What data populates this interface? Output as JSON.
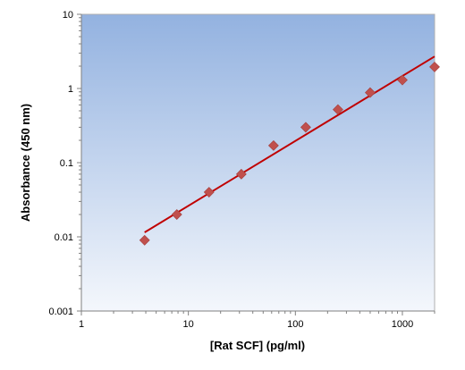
{
  "chart_data": {
    "type": "scatter",
    "title": "",
    "xlabel": "[Rat SCF] (pg/ml)",
    "ylabel": "Absorbance (450 nm)",
    "x_scale": "log",
    "y_scale": "log",
    "xlim": [
      1,
      2000
    ],
    "ylim": [
      0.001,
      10
    ],
    "x_ticks": [
      1,
      10,
      100,
      1000
    ],
    "x_tick_labels": [
      "1",
      "10",
      "100",
      "1000"
    ],
    "y_ticks": [
      0.001,
      0.01,
      0.1,
      1,
      10
    ],
    "y_tick_labels": [
      "0.001",
      "0.01",
      "0.1",
      "1",
      "10"
    ],
    "grid": false,
    "legend": "none",
    "series": [
      {
        "kind": "points",
        "marker": "diamond",
        "color": "#c0504d",
        "x": [
          3.9,
          7.8,
          15.6,
          31.25,
          62.5,
          125,
          250,
          500,
          1000,
          2000
        ],
        "y": [
          0.009,
          0.02,
          0.04,
          0.07,
          0.17,
          0.3,
          0.52,
          0.88,
          1.3,
          1.95
        ]
      },
      {
        "kind": "fit-line",
        "color": "#c00000",
        "x": [
          3.9,
          2000
        ],
        "y": [
          0.0115,
          2.7
        ]
      }
    ],
    "background_gradient": [
      "#93b2e0",
      "#f4f7fc"
    ]
  }
}
